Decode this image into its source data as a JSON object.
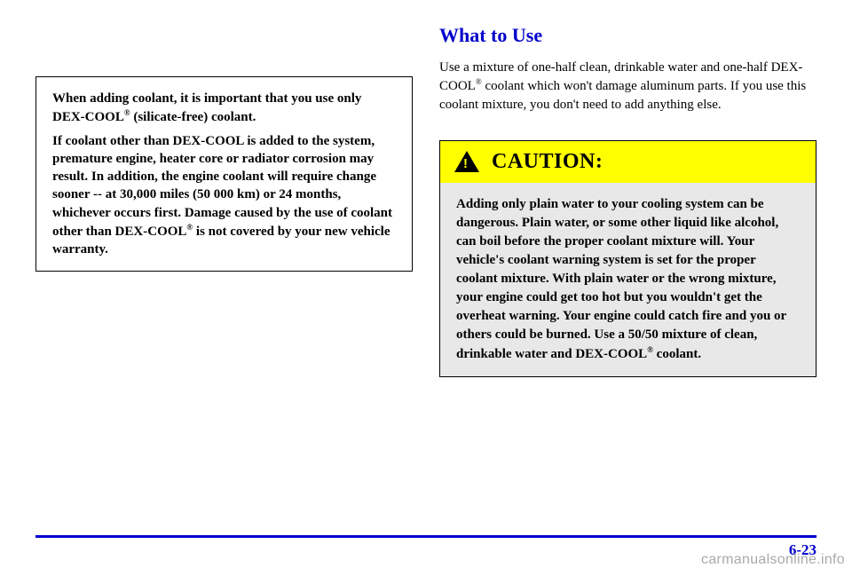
{
  "left": {
    "notice": {
      "p1_a": "When adding coolant, it is important that you use only DEX",
      "p1_b": "COOL",
      "p1_c": " (silicate",
      "p1_d": "free) coolant.",
      "p2_a": "If coolant other than DEX",
      "p2_b": "COOL is added to the system, premature engine, heater core or radiator corrosion may result. In addition, the engine coolant will require change sooner ",
      "p2_c": " at 30,000 miles (50 000 km) or 24 months, whichever occurs first. Damage caused by the use of coolant other than DEX",
      "p2_d": "COOL",
      "p2_e": " is not covered by your new vehicle warranty."
    }
  },
  "right": {
    "heading": "What to Use",
    "body_a": "Use a mixture of one-half clean, drinkable water and one-half DEX",
    "body_b": "COOL",
    "body_c": " coolant which won't damage aluminum parts. If you use this coolant mixture, you don't need to add anything else.",
    "caution_label": "CAUTION:",
    "caution_body_a": "Adding only plain water to your cooling system can be dangerous. Plain water, or some other liquid like alcohol, can boil before the proper coolant mixture will. Your vehicle's coolant warning system is set for the proper coolant mixture. With plain water or the wrong mixture, your engine could get too hot but you wouldn't get the overheat warning. Your engine could catch fire and you or others could be burned. Use a 50/50 mixture of clean, drinkable water and DEX",
    "caution_body_b": "COOL",
    "caution_body_c": " coolant."
  },
  "pagenum": "6-23",
  "watermark": "carmanualsonline.info",
  "reg": "®",
  "hyph": "-",
  "ddash": "--"
}
